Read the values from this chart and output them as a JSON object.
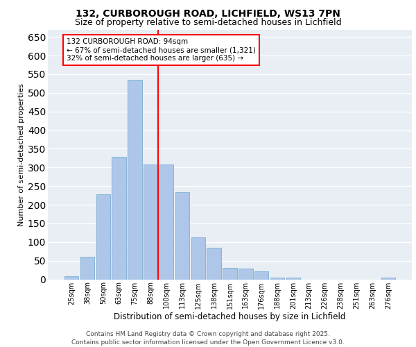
{
  "title1": "132, CURBOROUGH ROAD, LICHFIELD, WS13 7PN",
  "title2": "Size of property relative to semi-detached houses in Lichfield",
  "xlabel": "Distribution of semi-detached houses by size in Lichfield",
  "ylabel": "Number of semi-detached properties",
  "categories": [
    "25sqm",
    "38sqm",
    "50sqm",
    "63sqm",
    "75sqm",
    "88sqm",
    "100sqm",
    "113sqm",
    "125sqm",
    "138sqm",
    "151sqm",
    "163sqm",
    "176sqm",
    "188sqm",
    "201sqm",
    "213sqm",
    "226sqm",
    "238sqm",
    "251sqm",
    "263sqm",
    "276sqm"
  ],
  "values": [
    8,
    60,
    228,
    328,
    535,
    308,
    308,
    233,
    113,
    85,
    30,
    28,
    21,
    5,
    5,
    0,
    0,
    0,
    0,
    0,
    5
  ],
  "bar_color": "#aec6e8",
  "bar_edgecolor": "#7aafd4",
  "vline_color": "red",
  "vline_pos": 5.45,
  "annotation_line1": "132 CURBOROUGH ROAD: 94sqm",
  "annotation_line2": "← 67% of semi-detached houses are smaller (1,321)",
  "annotation_line3": "32% of semi-detached houses are larger (635) →",
  "annotation_box_facecolor": "white",
  "annotation_box_edgecolor": "red",
  "ylim": [
    0,
    670
  ],
  "yticks": [
    0,
    50,
    100,
    150,
    200,
    250,
    300,
    350,
    400,
    450,
    500,
    550,
    600,
    650
  ],
  "background_color": "#e8eef4",
  "footer_line1": "Contains HM Land Registry data © Crown copyright and database right 2025.",
  "footer_line2": "Contains public sector information licensed under the Open Government Licence v3.0.",
  "title1_fontsize": 10,
  "title2_fontsize": 9,
  "xlabel_fontsize": 8.5,
  "ylabel_fontsize": 8,
  "tick_fontsize": 7,
  "annotation_fontsize": 7.5,
  "footer_fontsize": 6.5
}
